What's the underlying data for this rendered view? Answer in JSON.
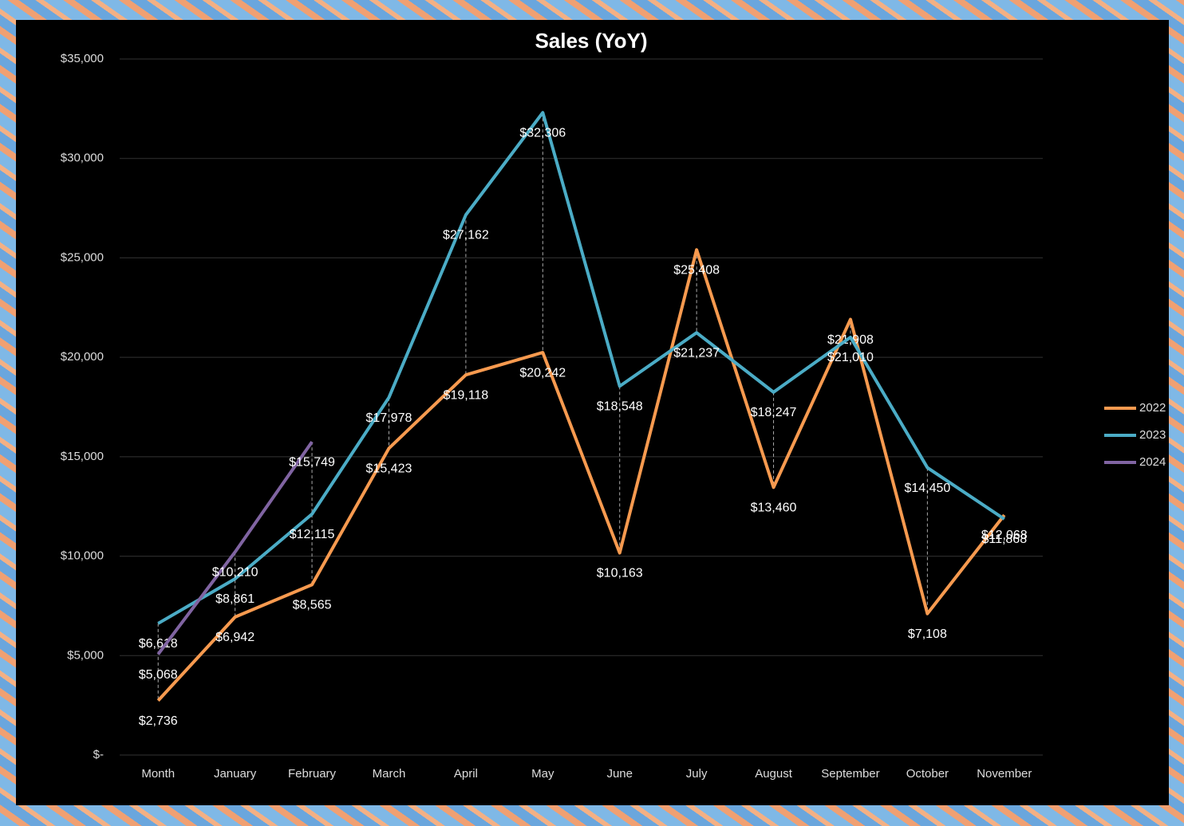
{
  "chart_data": {
    "type": "line",
    "title": "Sales (YoY)",
    "categories": [
      "Month",
      "January",
      "February",
      "March",
      "April",
      "May",
      "June",
      "July",
      "August",
      "September",
      "October",
      "November"
    ],
    "series": [
      {
        "name": "2022",
        "color": "#f79a4f",
        "values": [
          2736,
          6942,
          8565,
          15423,
          19118,
          20242,
          10163,
          25408,
          13460,
          21908,
          7108,
          12068
        ],
        "value_labels": [
          "$2,736",
          "$6,942",
          "$8,565",
          "$15,423",
          "$19,118",
          "$20,242",
          "$10,163",
          "$25,408",
          "$13,460",
          "$21,908",
          "$7,108",
          "$12,068"
        ]
      },
      {
        "name": "2023",
        "color": "#4bacc6",
        "values": [
          6618,
          8861,
          12115,
          17978,
          27162,
          32306,
          18548,
          21237,
          18247,
          21010,
          14450,
          11868
        ],
        "value_labels": [
          "$6,618",
          "$8,861",
          "$12,115",
          "$17,978",
          "$27,162",
          "$32,306",
          "$18,548",
          "$21,237",
          "$18,247",
          "$21,010",
          "$14,450",
          "$11,868"
        ]
      },
      {
        "name": "2024",
        "color": "#8064a2",
        "values": [
          5068,
          10210,
          15749,
          null,
          null,
          null,
          null,
          null,
          null,
          null,
          null,
          null
        ],
        "value_labels": [
          "$5,068",
          "$10,210",
          "$15,749",
          null,
          null,
          null,
          null,
          null,
          null,
          null,
          null,
          null
        ]
      }
    ],
    "ylim": [
      0,
      35000
    ],
    "yticks": [
      {
        "value": 0,
        "label": "$-"
      },
      {
        "value": 5000,
        "label": "$5,000"
      },
      {
        "value": 10000,
        "label": "$10,000"
      },
      {
        "value": 15000,
        "label": "$15,000"
      },
      {
        "value": 20000,
        "label": "$20,000"
      },
      {
        "value": 25000,
        "label": "$25,000"
      },
      {
        "value": 30000,
        "label": "$30,000"
      },
      {
        "value": 35000,
        "label": "$35,000"
      }
    ],
    "grid": true,
    "legend": "right"
  }
}
